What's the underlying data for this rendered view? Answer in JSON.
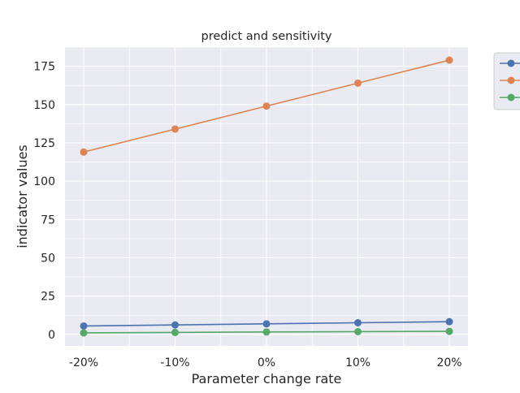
{
  "chart_data": {
    "type": "line",
    "title": "predict and sensitivity",
    "xlabel": "Parameter change rate",
    "ylabel": "indicator values",
    "categories": [
      "-20%",
      "-10%",
      "0%",
      "10%",
      "20%"
    ],
    "ylim": [
      -7.5,
      187.5
    ],
    "yticks": [
      0,
      25,
      50,
      75,
      100,
      125,
      150,
      175
    ],
    "grid": true,
    "legend": "upper-right-outside",
    "series": [
      {
        "values": [
          5.5,
          6.2,
          6.9,
          7.6,
          8.3
        ],
        "color": "#4c72b0"
      },
      {
        "values": [
          119,
          134,
          149,
          164,
          179
        ],
        "color": "#dd8452"
      },
      {
        "values": [
          1.0,
          1.3,
          1.6,
          1.8,
          2.0
        ],
        "color": "#55a868"
      }
    ]
  }
}
